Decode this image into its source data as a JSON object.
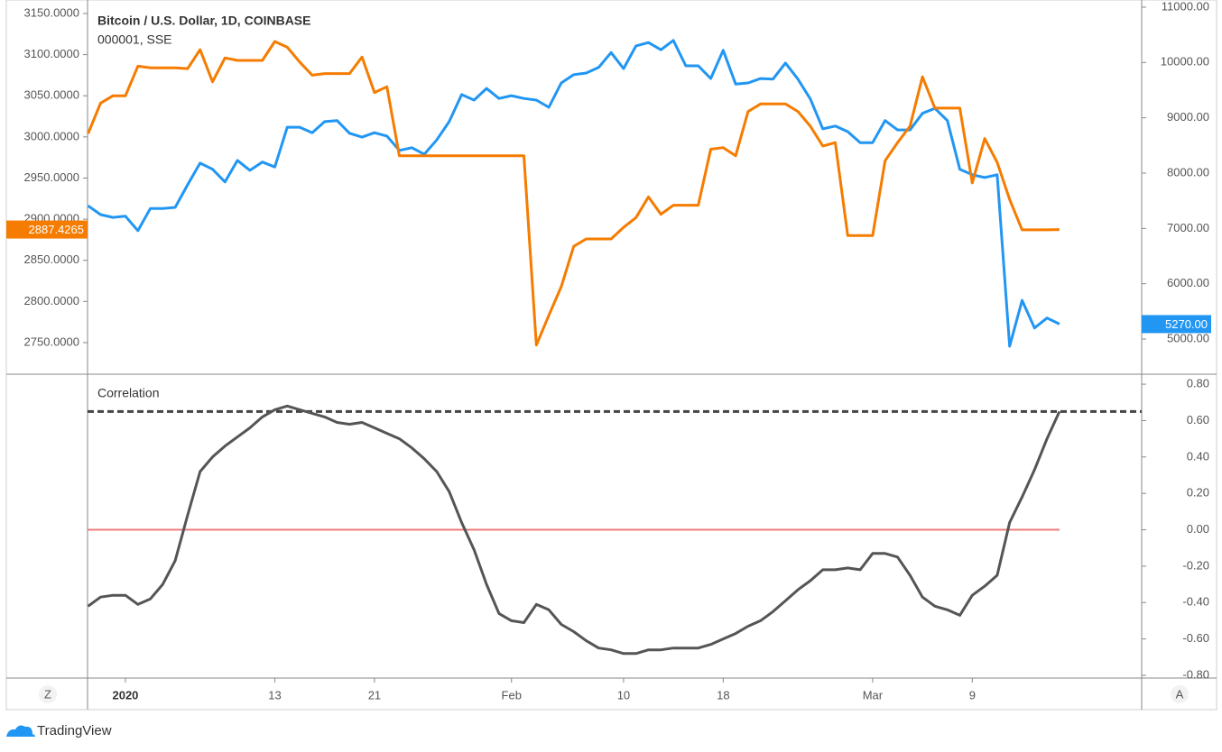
{
  "chart_data": [
    {
      "type": "line",
      "x": [
        -3,
        -2,
        -1,
        0,
        1,
        2,
        3,
        4,
        5,
        6,
        7,
        8,
        9,
        10,
        11,
        12,
        13,
        14,
        15,
        16,
        17,
        18,
        19,
        20,
        21,
        22,
        23,
        24,
        25,
        26,
        27,
        28,
        29,
        30,
        31,
        32,
        33,
        34,
        35,
        36,
        37,
        38,
        39,
        40,
        41,
        42,
        43,
        44,
        45,
        46,
        47,
        48,
        49,
        50,
        51,
        52,
        53,
        54,
        55,
        56,
        57,
        58,
        59,
        60,
        61,
        62,
        63,
        64,
        65,
        66,
        67,
        68,
        69,
        70,
        71,
        72,
        73,
        74,
        75
      ],
      "xlim": [
        -3.04,
        81.6
      ],
      "ylim": [
        2711.6,
        3166.4
      ],
      "yticks": [
        {
          "value": 2750,
          "label": "2750.0000"
        },
        {
          "value": 2800,
          "label": "2800.0000"
        },
        {
          "value": 2850,
          "label": "2850.0000"
        },
        {
          "value": 2900,
          "label": "2900.0000"
        },
        {
          "value": 2950,
          "label": "2950.0000"
        },
        {
          "value": 3000,
          "label": "3000.0000"
        },
        {
          "value": 3050,
          "label": "3050.0000"
        },
        {
          "value": 3100,
          "label": "3100.0000"
        },
        {
          "value": 3150,
          "label": "3150.0000"
        }
      ],
      "y2lim": [
        4364,
        11130
      ],
      "y2ticks": [
        {
          "value": 5000,
          "label": "5000.00"
        },
        {
          "value": 6000,
          "label": "6000.00"
        },
        {
          "value": 7000,
          "label": "7000.00"
        },
        {
          "value": 8000,
          "label": "8000.00"
        },
        {
          "value": 9000,
          "label": "9000.00"
        },
        {
          "value": 10000,
          "label": "10000.00"
        },
        {
          "value": 11000,
          "label": "11000.00"
        }
      ],
      "series": [
        {
          "name": "Bitcoin / U.S. Dollar, 1D, COINBASE",
          "color": "#2196f3",
          "axis": "y2",
          "last_label": "5270.00",
          "values": [
            7410,
            7250,
            7200,
            7220,
            6960,
            7360,
            7360,
            7380,
            7790,
            8180,
            8070,
            7840,
            8230,
            8050,
            8200,
            8110,
            8830,
            8830,
            8730,
            8930,
            8950,
            8720,
            8650,
            8730,
            8670,
            8410,
            8460,
            8340,
            8600,
            8930,
            9420,
            9320,
            9530,
            9350,
            9400,
            9350,
            9320,
            9190,
            9630,
            9780,
            9810,
            9910,
            10180,
            9890,
            10300,
            10360,
            10230,
            10400,
            9940,
            9940,
            9710,
            10220,
            9610,
            9630,
            9710,
            9700,
            9990,
            9700,
            9340,
            8800,
            8850,
            8750,
            8550,
            8550,
            8950,
            8780,
            8780,
            9080,
            9170,
            8950,
            8070,
            7970,
            7920,
            7970,
            4870,
            5700,
            5200,
            5380,
            5270
          ]
        },
        {
          "name": "000001, SSE",
          "color": "#f57c00",
          "axis": "y",
          "last_label": "2887.4265",
          "values": [
            3004,
            3041,
            3050,
            3050,
            3086,
            3084,
            3084,
            3084,
            3083,
            3106,
            3067,
            3096,
            3093,
            3093,
            3093,
            3116,
            3109,
            3091,
            3075,
            3077,
            3077,
            3077,
            3097,
            3054,
            3061,
            2977,
            2977,
            2977,
            2977,
            2977,
            2977,
            2977,
            2977,
            2977,
            2977,
            2977,
            2747,
            2783,
            2818,
            2867,
            2876,
            2876,
            2876,
            2890,
            2902,
            2927,
            2906,
            2917,
            2917,
            2917,
            2985,
            2987,
            2977,
            3031,
            3040,
            3040,
            3040,
            3031,
            3013,
            2989,
            2993,
            2880,
            2880,
            2880,
            2971,
            2993,
            3013,
            3073,
            3035,
            3035,
            3035,
            2944,
            2998,
            2969,
            2924,
            2887,
            2887,
            2887,
            2887.4265
          ]
        }
      ]
    },
    {
      "type": "line",
      "x": [
        -3,
        -2,
        -1,
        0,
        1,
        2,
        3,
        4,
        5,
        6,
        7,
        8,
        9,
        10,
        11,
        12,
        13,
        14,
        15,
        16,
        17,
        18,
        19,
        20,
        21,
        22,
        23,
        24,
        25,
        26,
        27,
        28,
        29,
        30,
        31,
        32,
        33,
        34,
        35,
        36,
        37,
        38,
        39,
        40,
        41,
        42,
        43,
        44,
        45,
        46,
        47,
        48,
        49,
        50,
        51,
        52,
        53,
        54,
        55,
        56,
        57,
        58,
        59,
        60,
        61,
        62,
        63,
        64,
        65,
        66,
        67,
        68,
        69,
        70,
        71,
        72,
        73,
        74,
        75
      ],
      "xlim": [
        -3.04,
        81.6
      ],
      "xticks": [
        {
          "value": 0,
          "label": "2020"
        },
        {
          "value": 12,
          "label": "13"
        },
        {
          "value": 20,
          "label": "21"
        },
        {
          "value": 31,
          "label": "Feb"
        },
        {
          "value": 40,
          "label": "10"
        },
        {
          "value": 48,
          "label": "18"
        },
        {
          "value": 60,
          "label": "Mar"
        },
        {
          "value": 68,
          "label": "9"
        }
      ],
      "ylim": [
        -0.815,
        0.855
      ],
      "yticks": [
        {
          "value": -0.8,
          "label": "-0.80"
        },
        {
          "value": -0.6,
          "label": "-0.60"
        },
        {
          "value": -0.4,
          "label": "-0.40"
        },
        {
          "value": -0.2,
          "label": "-0.20"
        },
        {
          "value": 0,
          "label": "0.00"
        },
        {
          "value": 0.2,
          "label": "0.20"
        },
        {
          "value": 0.4,
          "label": "0.40"
        },
        {
          "value": 0.6,
          "label": "0.60"
        },
        {
          "value": 0.8,
          "label": "0.80"
        }
      ],
      "levels": [
        {
          "value": 0.65,
          "color": "#444444",
          "style": "dashed"
        },
        {
          "value": 0,
          "color": "#ef7b7b",
          "style": "solid"
        }
      ],
      "series": [
        {
          "name": "Correlation",
          "color": "#555555",
          "values": [
            -0.42,
            -0.37,
            -0.36,
            -0.36,
            -0.41,
            -0.38,
            -0.3,
            -0.17,
            0.08,
            0.32,
            0.4,
            0.46,
            0.51,
            0.56,
            0.62,
            0.66,
            0.68,
            0.66,
            0.64,
            0.62,
            0.59,
            0.58,
            0.59,
            0.56,
            0.53,
            0.5,
            0.45,
            0.39,
            0.32,
            0.21,
            0.04,
            -0.11,
            -0.3,
            -0.46,
            -0.5,
            -0.51,
            -0.41,
            -0.44,
            -0.52,
            -0.56,
            -0.61,
            -0.65,
            -0.66,
            -0.68,
            -0.68,
            -0.66,
            -0.66,
            -0.65,
            -0.65,
            -0.65,
            -0.63,
            -0.6,
            -0.57,
            -0.53,
            -0.5,
            -0.45,
            -0.39,
            -0.33,
            -0.28,
            -0.22,
            -0.22,
            -0.21,
            -0.22,
            -0.13,
            -0.13,
            -0.15,
            -0.25,
            -0.37,
            -0.42,
            -0.44,
            -0.47,
            -0.36,
            -0.31,
            -0.25,
            0.04,
            0.18,
            0.33,
            0.5,
            0.65
          ]
        }
      ]
    }
  ],
  "footer": {
    "brand": "TradingView",
    "left_button": "Z",
    "right_button": "A"
  }
}
